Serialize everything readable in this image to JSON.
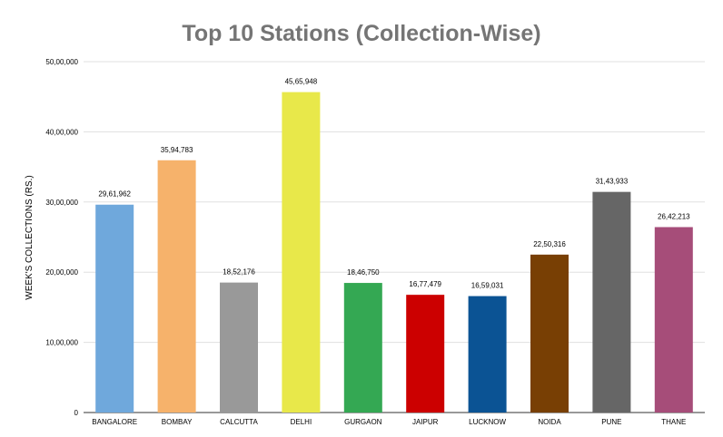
{
  "chart_data": {
    "type": "bar",
    "title": "Top 10 Stations (Collection-Wise)",
    "xlabel": "",
    "ylabel": "WEEK'S COLLECTIONS (RS.)",
    "ylim": [
      0,
      5000000
    ],
    "grid": true,
    "legend": "none",
    "categories": [
      "BANGALORE",
      "BOMBAY",
      "CALCUTTA",
      "DELHI",
      "GURGAON",
      "JAIPUR",
      "LUCKNOW",
      "NOIDA",
      "PUNE",
      "THANE"
    ],
    "values": [
      2961962,
      3594783,
      1852176,
      4565948,
      1846750,
      1677479,
      1659031,
      2250316,
      3143933,
      2642213
    ],
    "data_labels": [
      "29,61,962",
      "35,94,783",
      "18,52,176",
      "45,65,948",
      "18,46,750",
      "16,77,479",
      "16,59,031",
      "22,50,316",
      "31,43,933",
      "26,42,213"
    ],
    "y_ticks": [
      0,
      1000000,
      2000000,
      3000000,
      4000000,
      5000000
    ],
    "y_tick_labels": [
      "0",
      "10,00,000",
      "20,00,000",
      "30,00,000",
      "40,00,000",
      "50,00,000"
    ],
    "colors": [
      "#6fa8dc",
      "#f6b26b",
      "#999999",
      "#e8e84a",
      "#34a853",
      "#cc0000",
      "#0b5394",
      "#783f04",
      "#666666",
      "#a64d79"
    ]
  }
}
